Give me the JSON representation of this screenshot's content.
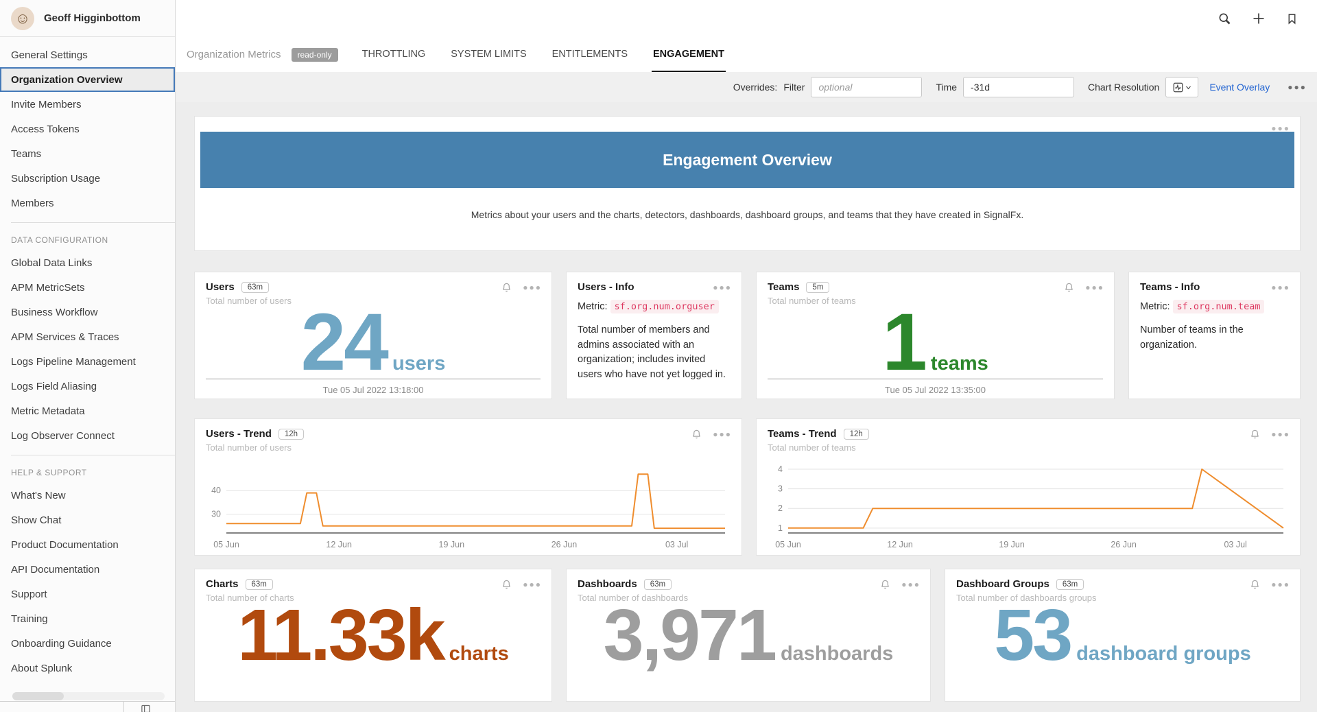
{
  "user": {
    "name": "Geoff Higginbottom",
    "avatar_glyph": "☺"
  },
  "sidebar": {
    "groups": [
      {
        "items": [
          "General Settings",
          "Organization Overview",
          "Invite Members",
          "Access Tokens",
          "Teams",
          "Subscription Usage",
          "Members"
        ]
      },
      {
        "heading": "DATA CONFIGURATION",
        "items": [
          "Global Data Links",
          "APM MetricSets",
          "Business Workflow",
          "APM Services & Traces",
          "Logs Pipeline Management",
          "Logs Field Aliasing",
          "Metric Metadata",
          "Log Observer Connect"
        ]
      },
      {
        "heading": "HELP & SUPPORT",
        "items": [
          "What's New",
          "Show Chat",
          "Product Documentation",
          "API Documentation",
          "Support",
          "Training",
          "Onboarding Guidance",
          "About Splunk"
        ]
      }
    ],
    "selected_item": "Organization Overview"
  },
  "tabs": {
    "context_label": "Organization Metrics",
    "readonly_badge": "read-only",
    "items": [
      "THROTTLING",
      "SYSTEM LIMITS",
      "ENTITLEMENTS",
      "ENGAGEMENT"
    ],
    "active": "ENGAGEMENT"
  },
  "toolbar": {
    "overrides_label": "Overrides:",
    "filter_label": "Filter",
    "filter_placeholder": "optional",
    "time_label": "Time",
    "time_value": "-31d",
    "chart_resolution_label": "Chart Resolution",
    "event_overlay_label": "Event Overlay"
  },
  "overview": {
    "title": "Engagement Overview",
    "banner_color": "#4781ae",
    "description": "Metrics about your users and the charts, detectors, dashboards, dashboard groups, and teams that they have created in SignalFx."
  },
  "cards": {
    "users": {
      "title": "Users",
      "badge": "63m",
      "subtitle": "Total number of users",
      "value": "24",
      "unit": "users",
      "color": "#6fa6c4",
      "timestamp": "Tue 05 Jul 2022 13:18:00"
    },
    "users_info": {
      "title": "Users - Info",
      "metric_label": "Metric:",
      "metric": "sf.org.num.orguser",
      "description": "Total number of members and admins associated with an organization; includes invited users who have not yet logged in."
    },
    "teams": {
      "title": "Teams",
      "badge": "5m",
      "subtitle": "Total number of teams",
      "value": "1",
      "unit": "teams",
      "color": "#2c872c",
      "timestamp": "Tue 05 Jul 2022 13:35:00"
    },
    "teams_info": {
      "title": "Teams - Info",
      "metric_label": "Metric:",
      "metric": "sf.org.num.team",
      "description": "Number of teams in the organization."
    },
    "charts": {
      "title": "Charts",
      "badge": "63m",
      "subtitle": "Total number of charts",
      "value": "11.33k",
      "unit": "charts",
      "color": "#b14a0e"
    },
    "dashboards": {
      "title": "Dashboards",
      "badge": "63m",
      "subtitle": "Total number of dashboards",
      "value": "3,971",
      "unit": "dashboards",
      "color": "#9e9e9e"
    },
    "dashboard_groups": {
      "title": "Dashboard Groups",
      "badge": "63m",
      "subtitle": "Total number of dashboards groups",
      "value": "53",
      "unit": "dashboard groups",
      "color": "#6fa6c4"
    }
  },
  "chart_data": [
    {
      "id": "users_trend",
      "type": "line",
      "title": "Users - Trend",
      "badge": "12h",
      "subtitle": "Total number of users",
      "x_ticks": [
        "05 Jun",
        "12 Jun",
        "19 Jun",
        "26 Jun",
        "03 Jul"
      ],
      "x_tick_days": [
        0,
        7,
        14,
        21,
        28
      ],
      "x_range": [
        0,
        31
      ],
      "y_ticks": [
        30,
        40
      ],
      "y_range": [
        22,
        52
      ],
      "grid": true,
      "legend": "none",
      "line_color": "#ef8d2e",
      "points": [
        [
          0,
          26
        ],
        [
          4.6,
          26
        ],
        [
          5.0,
          39
        ],
        [
          5.6,
          39
        ],
        [
          6.0,
          25
        ],
        [
          25.2,
          25
        ],
        [
          25.6,
          47
        ],
        [
          26.2,
          47
        ],
        [
          26.6,
          24
        ],
        [
          31,
          24
        ]
      ]
    },
    {
      "id": "teams_trend",
      "type": "line",
      "title": "Teams - Trend",
      "badge": "12h",
      "subtitle": "Total number of teams",
      "x_ticks": [
        "05 Jun",
        "12 Jun",
        "19 Jun",
        "26 Jun",
        "03 Jul"
      ],
      "x_tick_days": [
        0,
        7,
        14,
        21,
        28
      ],
      "x_range": [
        0,
        31
      ],
      "y_ticks": [
        1,
        2,
        3,
        4
      ],
      "y_range": [
        0.75,
        4.35
      ],
      "grid": true,
      "legend": "none",
      "line_color": "#ef8d2e",
      "points": [
        [
          0,
          1
        ],
        [
          4.7,
          1
        ],
        [
          5.3,
          2
        ],
        [
          25.3,
          2
        ],
        [
          25.9,
          4
        ],
        [
          31,
          1
        ]
      ]
    }
  ]
}
